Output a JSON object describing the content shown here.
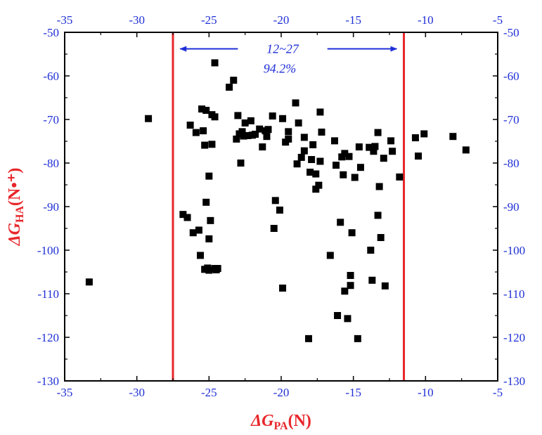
{
  "chart_data": {
    "type": "scatter",
    "title": "",
    "xlabel": {
      "main": "ΔG",
      "sub": "PA",
      "tail": "(N)"
    },
    "ylabel": {
      "main": "ΔG",
      "sub": "HA",
      "tail": "(N•⁺)"
    },
    "xlim": [
      -35,
      -5
    ],
    "ylim": [
      -130,
      -50
    ],
    "x_ticks": [
      -35,
      -30,
      -25,
      -20,
      -15,
      -10,
      -5
    ],
    "y_ticks": [
      -50,
      -60,
      -70,
      -80,
      -90,
      -100,
      -110,
      -120,
      -130
    ],
    "x_tick_labels": [
      "-35",
      "-30",
      "-25",
      "-20",
      "-15",
      "-10",
      "-5"
    ],
    "y_tick_labels": [
      "-50",
      "-60",
      "-70",
      "-80",
      "-90",
      "-100",
      "-110",
      "-120",
      "-130"
    ],
    "mirror_axes": true,
    "grid": false,
    "vertical_lines": [
      -27.5,
      -11.5
    ],
    "annotation": {
      "line1": "12~27",
      "line2": "94.2%"
    },
    "series": [
      {
        "marker": "square",
        "color": "#000000",
        "points": [
          [
            -33.3,
            -107.3
          ],
          [
            -29.2,
            -69.8
          ],
          [
            -26.8,
            -91.8
          ],
          [
            -26.5,
            -92.5
          ],
          [
            -26.3,
            -71.3
          ],
          [
            -26.1,
            -96
          ],
          [
            -25.9,
            -73
          ],
          [
            -25.7,
            -95.4
          ],
          [
            -25.6,
            -101.2
          ],
          [
            -25.5,
            -67.6
          ],
          [
            -25.4,
            -72.6
          ],
          [
            -25.3,
            -104.4
          ],
          [
            -25.3,
            -75.9
          ],
          [
            -25.2,
            -67.9
          ],
          [
            -25.2,
            -89
          ],
          [
            -25.1,
            -104.1
          ],
          [
            -25.0,
            -104.6
          ],
          [
            -25.0,
            -97.4
          ],
          [
            -25.0,
            -83
          ],
          [
            -24.9,
            -93.2
          ],
          [
            -24.8,
            -75.7
          ],
          [
            -24.8,
            -68.9
          ],
          [
            -24.6,
            -104.2
          ],
          [
            -24.6,
            -69.4
          ],
          [
            -24.5,
            -104.5
          ],
          [
            -24.4,
            -104.2
          ],
          [
            -24.6,
            -57
          ],
          [
            -23.6,
            -62.6
          ],
          [
            -23.3,
            -61
          ],
          [
            -23.1,
            -74.5
          ],
          [
            -23.0,
            -69.1
          ],
          [
            -22.9,
            -73.3
          ],
          [
            -22.8,
            -80
          ],
          [
            -22.7,
            -72.8
          ],
          [
            -22.6,
            -73.8
          ],
          [
            -22.5,
            -70.8
          ],
          [
            -22.3,
            -73.7
          ],
          [
            -22.1,
            -70.3
          ],
          [
            -22.0,
            -73.6
          ],
          [
            -21.8,
            -73.4
          ],
          [
            -21.5,
            -72.2
          ],
          [
            -21.3,
            -76.3
          ],
          [
            -21.1,
            -72.6
          ],
          [
            -21.0,
            -73.9
          ],
          [
            -20.9,
            -72.3
          ],
          [
            -20.6,
            -69.2
          ],
          [
            -20.5,
            -95
          ],
          [
            -20.4,
            -88.6
          ],
          [
            -20.1,
            -90.8
          ],
          [
            -19.9,
            -69.8
          ],
          [
            -19.9,
            -108.7
          ],
          [
            -19.7,
            -75.2
          ],
          [
            -19.5,
            -72.8
          ],
          [
            -19.5,
            -74.5
          ],
          [
            -19.0,
            -66.2
          ],
          [
            -18.9,
            -80.2
          ],
          [
            -18.8,
            -70.8
          ],
          [
            -18.6,
            -78.7
          ],
          [
            -18.4,
            -74.1
          ],
          [
            -18.4,
            -77.2
          ],
          [
            -18.1,
            -120.3
          ],
          [
            -18.0,
            -82.1
          ],
          [
            -17.9,
            -79.2
          ],
          [
            -17.8,
            -75.8
          ],
          [
            -17.6,
            -82.5
          ],
          [
            -17.6,
            -86
          ],
          [
            -17.4,
            -85.1
          ],
          [
            -17.3,
            -68.3
          ],
          [
            -17.3,
            -79.6
          ],
          [
            -17.2,
            -72.9
          ],
          [
            -16.6,
            -101.2
          ],
          [
            -16.3,
            -74.9
          ],
          [
            -16.2,
            -80.5
          ],
          [
            -16.1,
            -115
          ],
          [
            -15.9,
            -93.6
          ],
          [
            -15.8,
            -78.6
          ],
          [
            -15.7,
            -82.7
          ],
          [
            -15.6,
            -77.8
          ],
          [
            -15.6,
            -109.4
          ],
          [
            -15.4,
            -115.7
          ],
          [
            -15.3,
            -78.5
          ],
          [
            -15.2,
            -108.1
          ],
          [
            -15.2,
            -105.8
          ],
          [
            -15.1,
            -96
          ],
          [
            -14.9,
            -83.3
          ],
          [
            -14.7,
            -120.3
          ],
          [
            -14.6,
            -76.3
          ],
          [
            -14.5,
            -81
          ],
          [
            -13.9,
            -76.4
          ],
          [
            -13.8,
            -100
          ],
          [
            -13.7,
            -106.9
          ],
          [
            -13.6,
            -77.3
          ],
          [
            -13.5,
            -76.2
          ],
          [
            -13.3,
            -92
          ],
          [
            -13.3,
            -73
          ],
          [
            -13.2,
            -85.4
          ],
          [
            -13.1,
            -97.1
          ],
          [
            -12.9,
            -78.9
          ],
          [
            -12.8,
            -108.2
          ],
          [
            -12.4,
            -74.9
          ],
          [
            -12.3,
            -77.3
          ],
          [
            -11.8,
            -83.2
          ],
          [
            -10.7,
            -74.2
          ],
          [
            -10.5,
            -78.4
          ],
          [
            -10.1,
            -73.3
          ],
          [
            -8.1,
            -73.9
          ],
          [
            -7.2,
            -77
          ]
        ]
      }
    ]
  },
  "colors": {
    "axes": "#000000",
    "ticks_text": "#1f2fd6",
    "axis_title": "#e8262a",
    "vlines": "#e8262a",
    "annotation": "#1f2fd6",
    "markers": "#000000"
  }
}
